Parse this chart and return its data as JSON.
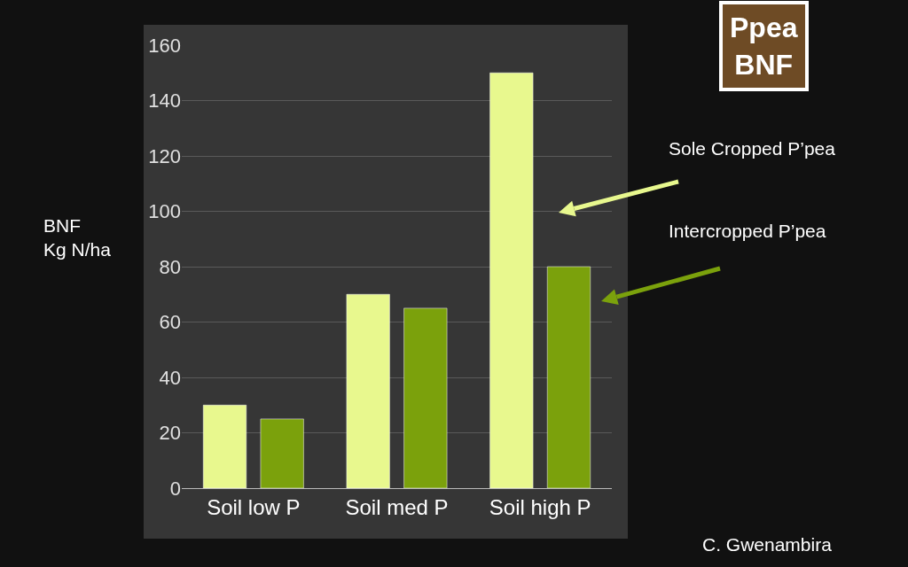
{
  "chart_data": {
    "type": "bar",
    "title": "Ppea\nBNF",
    "ylabel": "BNF\nKg N/ha",
    "categories": [
      "Soil low P",
      "Soil med P",
      "Soil high P"
    ],
    "series": [
      {
        "name": "Sole Cropped P’pea",
        "color": "#e8f88e",
        "values": [
          30,
          70,
          150
        ]
      },
      {
        "name": "Intercropped P’pea",
        "color": "#7ba10c",
        "values": [
          25,
          65,
          80
        ]
      }
    ],
    "ylim": [
      0,
      160
    ],
    "yticks": [
      0,
      20,
      40,
      60,
      80,
      100,
      120,
      140,
      160
    ],
    "grid": "y",
    "legend": false,
    "annotations": [
      "C. Gwenambira"
    ]
  }
}
